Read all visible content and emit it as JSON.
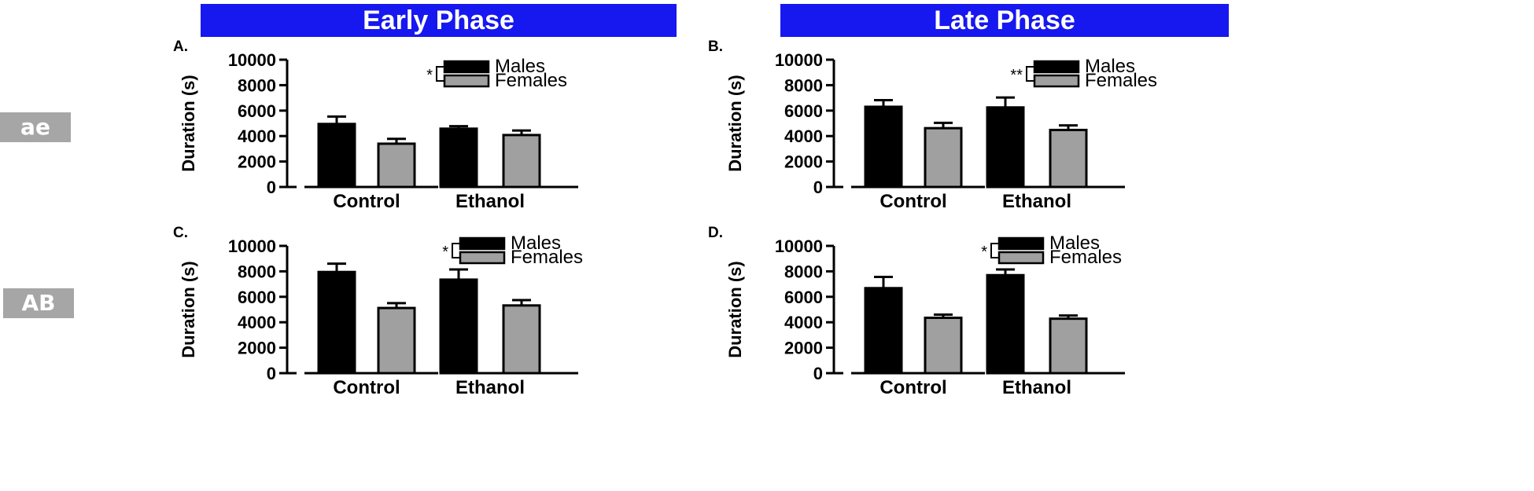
{
  "headers": {
    "early": "Early Phase",
    "late": "Late Phase"
  },
  "row_labels": {
    "top": "ae",
    "bottom": "AB"
  },
  "colors": {
    "header_bg": "#1717f0",
    "row_label_bg": "#a6a6a6",
    "males": "#000000",
    "females": "#a0a0a0"
  },
  "chart_data": [
    {
      "type": "bar",
      "panel": "A.",
      "categories": [
        "Control",
        "Ethanol"
      ],
      "series": [
        {
          "name": "Males",
          "values": [
            4950,
            4580
          ],
          "errors": [
            580,
            200
          ]
        },
        {
          "name": "Females",
          "values": [
            3400,
            4080
          ],
          "errors": [
            380,
            360
          ]
        }
      ],
      "ylabel": "Duration (s)",
      "ylim": [
        0,
        10000
      ],
      "yticks": [
        "0",
        "2000",
        "4000",
        "6000",
        "8000",
        "10000"
      ],
      "significance": "*",
      "legend": "top-right"
    },
    {
      "type": "bar",
      "panel": "B.",
      "categories": [
        "Control",
        "Ethanol"
      ],
      "series": [
        {
          "name": "Males",
          "values": [
            6300,
            6250
          ],
          "errors": [
            520,
            780
          ]
        },
        {
          "name": "Females",
          "values": [
            4620,
            4480
          ],
          "errors": [
            420,
            360
          ]
        }
      ],
      "ylabel": "Duration (s)",
      "ylim": [
        0,
        10000
      ],
      "yticks": [
        "0",
        "2000",
        "4000",
        "6000",
        "8000",
        "10000"
      ],
      "significance": "**",
      "legend": "top-right"
    },
    {
      "type": "bar",
      "panel": "C.",
      "categories": [
        "Control",
        "Ethanol"
      ],
      "series": [
        {
          "name": "Males",
          "values": [
            7950,
            7350
          ],
          "errors": [
            650,
            800
          ]
        },
        {
          "name": "Females",
          "values": [
            5120,
            5320
          ],
          "errors": [
            380,
            420
          ]
        }
      ],
      "ylabel": "Duration (s)",
      "ylim": [
        0,
        10000
      ],
      "yticks": [
        "0",
        "2000",
        "4000",
        "6000",
        "8000",
        "10000"
      ],
      "significance": "*",
      "legend": "top-right"
    },
    {
      "type": "bar",
      "panel": "D.",
      "categories": [
        "Control",
        "Ethanol"
      ],
      "series": [
        {
          "name": "Males",
          "values": [
            6680,
            7700
          ],
          "errors": [
            880,
            450
          ]
        },
        {
          "name": "Females",
          "values": [
            4350,
            4280
          ],
          "errors": [
            250,
            250
          ]
        }
      ],
      "ylabel": "Duration (s)",
      "ylim": [
        0,
        10000
      ],
      "yticks": [
        "0",
        "2000",
        "4000",
        "6000",
        "8000",
        "10000"
      ],
      "significance": "*",
      "legend": "top-right"
    }
  ]
}
